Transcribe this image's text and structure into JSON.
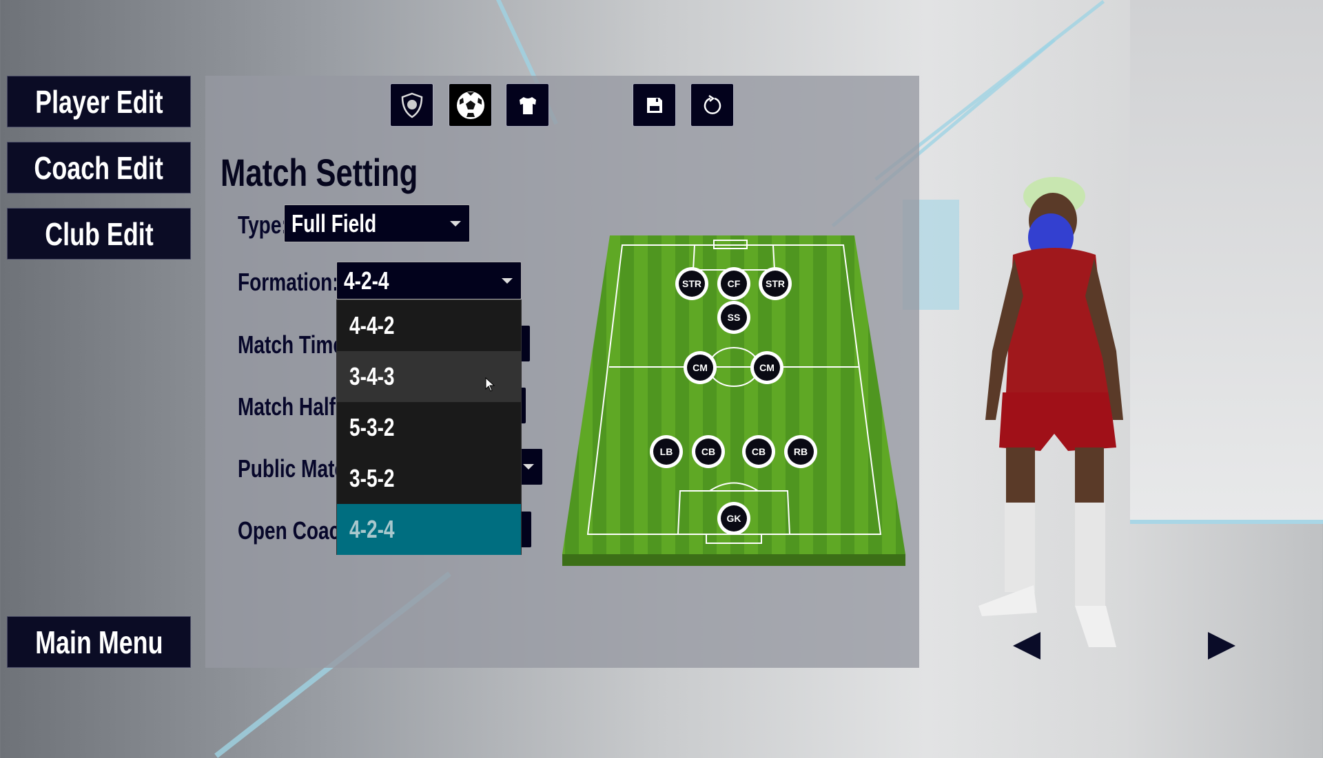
{
  "nav": {
    "player_edit": "Player Edit",
    "coach_edit": "Coach Edit",
    "club_edit": "Club Edit",
    "main_menu": "Main Menu"
  },
  "toolbar": {
    "icons": [
      "shield-icon",
      "soccer-ball-icon",
      "jersey-icon",
      "save-icon",
      "reset-icon"
    ]
  },
  "settings": {
    "title": "Match Setting",
    "type_label": "Type:",
    "type_value": "Full Field",
    "formation_label": "Formation:",
    "formation_value": "4-2-4",
    "match_time_label": "Match Time:",
    "match_half_label": "Match Half:",
    "public_match_label": "Public Match",
    "open_coach_label": "Open Coach:"
  },
  "formation_options": {
    "items": [
      "4-4-2",
      "3-4-3",
      "5-3-2",
      "3-5-2",
      "4-2-4"
    ],
    "hovered": "3-4-3",
    "selected": "4-2-4"
  },
  "field": {
    "players": [
      "STR",
      "CF",
      "STR",
      "SS",
      "CM",
      "CM",
      "LB",
      "CB",
      "CB",
      "RB",
      "GK"
    ]
  },
  "colors": {
    "accent": "#006e80",
    "panel": "#02021c",
    "pitch": "#5a9e22"
  }
}
